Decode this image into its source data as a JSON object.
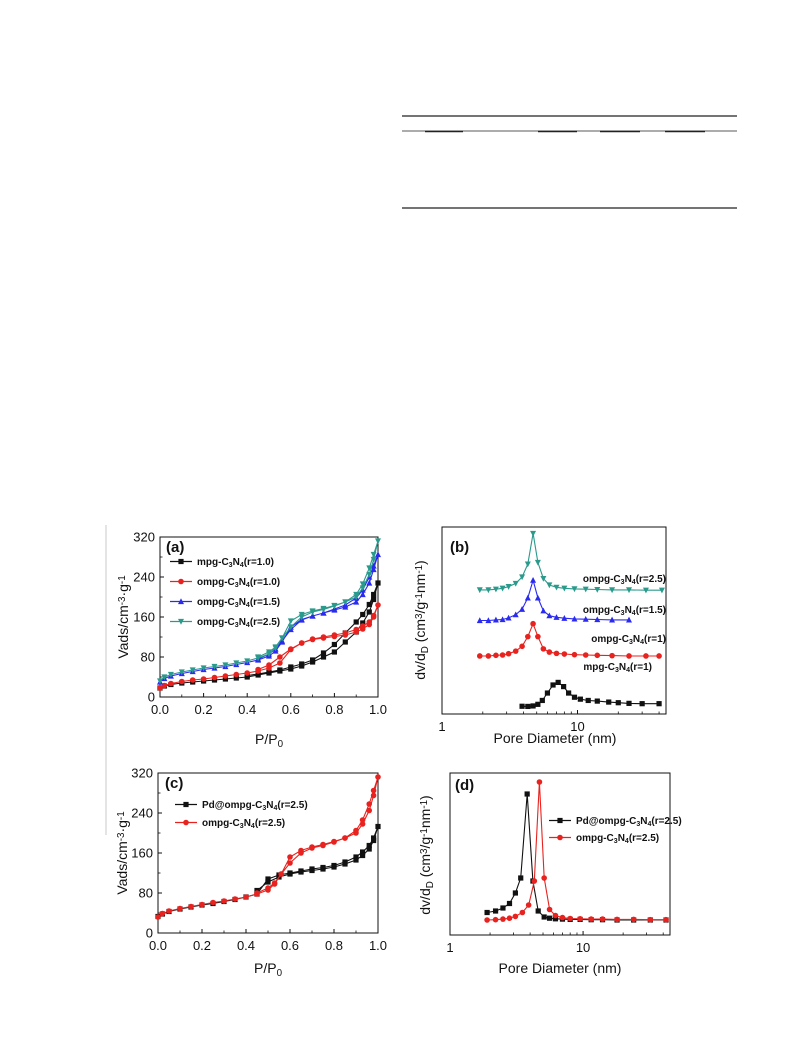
{
  "colors": {
    "black": "#111111",
    "red": "#e8221e",
    "blue": "#2a2af0",
    "teal": "#2a9a8c"
  },
  "chart_data": [
    {
      "id": "a",
      "type": "line",
      "panel_label": "(a)",
      "xlabel_parts": [
        "P/P",
        "0"
      ],
      "ylabel_parts": [
        "Vads/cm",
        "-3",
        "·g",
        "-1"
      ],
      "xlim": [
        0,
        1.0
      ],
      "ylim": [
        0,
        320
      ],
      "xticks": [
        0.0,
        0.2,
        0.4,
        0.6,
        0.8,
        1.0
      ],
      "xtick_labels": [
        "0.0",
        "0.2",
        "0.4",
        "0.6",
        "0.8",
        "1.0"
      ],
      "yticks": [
        0,
        80,
        160,
        240,
        320
      ],
      "ytick_labels": [
        "0",
        "80",
        "160",
        "240",
        "320"
      ],
      "legend_position": "top-left",
      "series": [
        {
          "name": "mpg-C3N4(r=1.0)",
          "legend": [
            "mpg-C",
            "3",
            "N",
            "4",
            "(r=1.0)"
          ],
          "color": "black",
          "marker": "square",
          "x": [
            0.0,
            0.02,
            0.05,
            0.1,
            0.15,
            0.2,
            0.25,
            0.3,
            0.35,
            0.4,
            0.45,
            0.5,
            0.55,
            0.6,
            0.65,
            0.7,
            0.75,
            0.8,
            0.85,
            0.9,
            0.93,
            0.96,
            0.98,
            1.0,
            0.98,
            0.96,
            0.93,
            0.9,
            0.85,
            0.8,
            0.75,
            0.7,
            0.65,
            0.6,
            0.55,
            0.5,
            0.45,
            0.4
          ],
          "y": [
            18,
            22,
            25,
            28,
            30,
            32,
            34,
            36,
            38,
            40,
            44,
            48,
            52,
            56,
            62,
            70,
            80,
            90,
            110,
            130,
            148,
            170,
            195,
            228,
            205,
            185,
            165,
            150,
            128,
            105,
            88,
            74,
            66,
            60,
            54,
            50,
            46,
            43
          ]
        },
        {
          "name": "ompg-C3N4(r=1.0)",
          "legend": [
            "ompg-C",
            "3",
            "N",
            "4",
            "(r=1.0)"
          ],
          "color": "red",
          "marker": "circle",
          "x": [
            0.0,
            0.02,
            0.05,
            0.1,
            0.15,
            0.2,
            0.25,
            0.3,
            0.35,
            0.4,
            0.45,
            0.5,
            0.55,
            0.6,
            0.65,
            0.7,
            0.75,
            0.8,
            0.85,
            0.9,
            0.93,
            0.96,
            0.98,
            1.0,
            0.98,
            0.96,
            0.93,
            0.9,
            0.85,
            0.8,
            0.75,
            0.7,
            0.65,
            0.6,
            0.55,
            0.5,
            0.45
          ],
          "y": [
            18,
            23,
            27,
            31,
            34,
            36,
            39,
            42,
            45,
            48,
            52,
            58,
            68,
            95,
            108,
            115,
            118,
            121,
            124,
            130,
            136,
            145,
            160,
            184,
            163,
            150,
            142,
            135,
            128,
            124,
            120,
            116,
            108,
            96,
            80,
            64,
            55
          ]
        },
        {
          "name": "ompg-C3N4(r=1.5)",
          "legend": [
            "ompg-C",
            "3",
            "N",
            "4",
            "(r=1.5)"
          ],
          "color": "blue",
          "marker": "triangle",
          "x": [
            0.0,
            0.02,
            0.05,
            0.1,
            0.15,
            0.2,
            0.25,
            0.3,
            0.35,
            0.4,
            0.45,
            0.5,
            0.53,
            0.56,
            0.6,
            0.65,
            0.7,
            0.75,
            0.8,
            0.85,
            0.9,
            0.93,
            0.96,
            0.98,
            1.0,
            0.98,
            0.96,
            0.93,
            0.9,
            0.85,
            0.8,
            0.75,
            0.7,
            0.65,
            0.6,
            0.56,
            0.53,
            0.5,
            0.45
          ],
          "y": [
            30,
            37,
            42,
            47,
            51,
            55,
            58,
            61,
            65,
            69,
            74,
            82,
            92,
            110,
            140,
            155,
            162,
            168,
            174,
            180,
            190,
            205,
            228,
            255,
            285,
            262,
            240,
            214,
            198,
            184,
            176,
            168,
            162,
            154,
            135,
            112,
            96,
            86,
            76
          ]
        },
        {
          "name": "ompg-C3N4(r=2.5)",
          "legend": [
            "ompg-C",
            "3",
            "N",
            "4",
            "(r=2.5)"
          ],
          "color": "teal",
          "marker": "triangle-down",
          "x": [
            0.0,
            0.02,
            0.05,
            0.1,
            0.15,
            0.2,
            0.25,
            0.3,
            0.35,
            0.4,
            0.45,
            0.5,
            0.53,
            0.56,
            0.6,
            0.65,
            0.7,
            0.75,
            0.8,
            0.85,
            0.9,
            0.93,
            0.96,
            0.98,
            1.0,
            0.98,
            0.96,
            0.93,
            0.9,
            0.85,
            0.8,
            0.75,
            0.7,
            0.65,
            0.6,
            0.56,
            0.53,
            0.5,
            0.45
          ],
          "y": [
            32,
            40,
            45,
            50,
            54,
            58,
            61,
            64,
            68,
            72,
            78,
            86,
            98,
            118,
            152,
            165,
            172,
            177,
            183,
            190,
            200,
            218,
            245,
            275,
            312,
            285,
            258,
            226,
            205,
            190,
            182,
            175,
            170,
            160,
            140,
            118,
            100,
            90,
            80
          ]
        }
      ]
    },
    {
      "id": "b",
      "type": "line",
      "panel_label": "(b)",
      "xlabel_parts": [
        "Pore Diameter (nm)"
      ],
      "ylabel_parts": [
        "dv/d",
        "D",
        " (cm",
        "3",
        "/g",
        "-1",
        "nm",
        "-1",
        ")"
      ],
      "xscale": "log",
      "xlim": [
        1,
        45
      ],
      "xticks": [
        1,
        10
      ],
      "xtick_labels": [
        "1",
        "10"
      ],
      "yticks_shown": false,
      "series": [
        {
          "name": "mpg-C3N4(r=1)",
          "legend": [
            "mpg-C",
            "3",
            "N",
            "4",
            "(r=1)"
          ],
          "color": "black",
          "marker": "square",
          "x": [
            3.9,
            4.3,
            4.7,
            5.1,
            5.5,
            6.0,
            6.6,
            7.2,
            7.9,
            8.6,
            9.5,
            10.5,
            12,
            14,
            17,
            20,
            24,
            30,
            40
          ],
          "y": [
            0.04,
            0.035,
            0.05,
            0.1,
            0.22,
            0.45,
            0.7,
            0.78,
            0.65,
            0.45,
            0.32,
            0.26,
            0.22,
            0.2,
            0.17,
            0.15,
            0.13,
            0.12,
            0.12
          ]
        },
        {
          "name": "ompg-C3N4(r=1)",
          "legend": [
            "ompg-C",
            "3",
            "N",
            "4",
            "(r=1)"
          ],
          "color": "red",
          "marker": "circle",
          "x": [
            1.9,
            2.2,
            2.5,
            2.8,
            3.1,
            3.5,
            3.9,
            4.3,
            4.7,
            5.1,
            5.6,
            6.2,
            7,
            8,
            9.5,
            11.5,
            14,
            18,
            24,
            32,
            40
          ],
          "y": [
            1.6,
            1.6,
            1.62,
            1.63,
            1.67,
            1.75,
            1.9,
            2.2,
            2.6,
            2.2,
            1.82,
            1.72,
            1.68,
            1.66,
            1.64,
            1.63,
            1.62,
            1.61,
            1.6,
            1.6,
            1.6
          ]
        },
        {
          "name": "ompg-C3N4(r=1.5)",
          "legend": [
            "ompg-C",
            "3",
            "N",
            "4",
            "(r=1.5)"
          ],
          "color": "blue",
          "marker": "triangle",
          "x": [
            1.9,
            2.2,
            2.5,
            2.8,
            3.1,
            3.5,
            3.9,
            4.3,
            4.7,
            5.1,
            5.6,
            6.2,
            7,
            8,
            9.5,
            11.5,
            14,
            18,
            24
          ],
          "y": [
            2.7,
            2.7,
            2.72,
            2.73,
            2.78,
            2.88,
            3.05,
            3.4,
            3.95,
            3.4,
            3.0,
            2.85,
            2.8,
            2.77,
            2.75,
            2.74,
            2.73,
            2.72,
            2.72
          ]
        },
        {
          "name": "ompg-C3N4(r=2.5)",
          "legend": [
            "ompg-C",
            "3",
            "N",
            "4",
            "(r=2.5)"
          ],
          "color": "teal",
          "marker": "triangle-down",
          "x": [
            1.9,
            2.2,
            2.5,
            2.8,
            3.1,
            3.5,
            3.9,
            4.3,
            4.7,
            5.1,
            5.6,
            6.2,
            7,
            8,
            9.5,
            11.5,
            14,
            18,
            24,
            32,
            42
          ],
          "y": [
            3.65,
            3.65,
            3.67,
            3.7,
            3.75,
            3.85,
            4.05,
            4.45,
            5.4,
            4.5,
            4.0,
            3.8,
            3.73,
            3.7,
            3.68,
            3.67,
            3.66,
            3.65,
            3.65,
            3.64,
            3.64
          ]
        }
      ]
    },
    {
      "id": "c",
      "type": "line",
      "panel_label": "(c)",
      "xlabel_parts": [
        "P/P",
        "0"
      ],
      "ylabel_parts": [
        "Vads/cm",
        "-3",
        "·g",
        "-1"
      ],
      "xlim": [
        0,
        1.0
      ],
      "ylim": [
        0,
        320
      ],
      "xticks": [
        0.0,
        0.2,
        0.4,
        0.6,
        0.8,
        1.0
      ],
      "xtick_labels": [
        "0.0",
        "0.2",
        "0.4",
        "0.6",
        "0.8",
        "1.0"
      ],
      "yticks": [
        0,
        80,
        160,
        240,
        320
      ],
      "ytick_labels": [
        "0",
        "80",
        "160",
        "240",
        "320"
      ],
      "series": [
        {
          "name": "Pd@ompg-C3N4(r=2.5)",
          "legend": [
            "Pd@ompg-C",
            "3",
            "N",
            "4",
            "(r=2.5)"
          ],
          "color": "black",
          "marker": "square",
          "x": [
            0.0,
            0.02,
            0.05,
            0.1,
            0.15,
            0.2,
            0.25,
            0.3,
            0.35,
            0.4,
            0.45,
            0.5,
            0.55,
            0.6,
            0.65,
            0.7,
            0.75,
            0.8,
            0.85,
            0.9,
            0.93,
            0.96,
            0.98,
            1.0,
            0.98,
            0.96,
            0.93,
            0.9,
            0.85,
            0.8,
            0.75,
            0.7,
            0.65,
            0.6,
            0.55,
            0.5,
            0.45
          ],
          "y": [
            33,
            38,
            43,
            48,
            52,
            56,
            59,
            63,
            67,
            72,
            78,
            108,
            116,
            120,
            124,
            128,
            131,
            135,
            142,
            152,
            162,
            175,
            190,
            213,
            185,
            168,
            155,
            146,
            138,
            132,
            128,
            125,
            122,
            118,
            112,
            102,
            85
          ]
        },
        {
          "name": "ompg-C3N4(r=2.5)",
          "legend": [
            "ompg-C",
            "3",
            "N",
            "4",
            "(r=2.5)"
          ],
          "color": "red",
          "marker": "circle",
          "x": [
            0.0,
            0.02,
            0.05,
            0.1,
            0.15,
            0.2,
            0.25,
            0.3,
            0.35,
            0.4,
            0.45,
            0.5,
            0.53,
            0.56,
            0.6,
            0.65,
            0.7,
            0.75,
            0.8,
            0.85,
            0.9,
            0.93,
            0.96,
            0.98,
            1.0,
            0.98,
            0.96,
            0.93,
            0.9,
            0.85,
            0.8,
            0.75,
            0.7,
            0.65,
            0.6,
            0.56,
            0.53,
            0.5,
            0.45
          ],
          "y": [
            32,
            39,
            44,
            49,
            53,
            57,
            61,
            64,
            68,
            72,
            78,
            86,
            98,
            118,
            152,
            165,
            172,
            177,
            183,
            190,
            200,
            218,
            245,
            275,
            312,
            285,
            258,
            226,
            205,
            190,
            182,
            175,
            170,
            160,
            140,
            118,
            100,
            90,
            80
          ]
        }
      ]
    },
    {
      "id": "d",
      "type": "line",
      "panel_label": "(d)",
      "xlabel_parts": [
        "Pore Diameter (nm)"
      ],
      "ylabel_parts": [
        "dv/d",
        "D",
        " (cm",
        "3",
        "/g",
        "-1",
        "nm",
        "-1",
        ")"
      ],
      "xscale": "log",
      "xlim": [
        1,
        45
      ],
      "xticks": [
        1,
        10
      ],
      "xtick_labels": [
        "1",
        "10"
      ],
      "yticks_shown": false,
      "legend_position": "top-right",
      "series": [
        {
          "name": "Pd@ompg-C3N4(r=2.5)",
          "legend": [
            "Pd@ompg-C",
            "3",
            "N",
            "4",
            "(r=2.5)"
          ],
          "color": "black",
          "marker": "square",
          "x": [
            1.9,
            2.2,
            2.5,
            2.8,
            3.1,
            3.4,
            3.8,
            4.2,
            4.6,
            5.1,
            5.6,
            6.2,
            7,
            8,
            9.5,
            11.5,
            14,
            18,
            24,
            32,
            42
          ],
          "y": [
            0.55,
            0.6,
            0.7,
            0.85,
            1.2,
            1.7,
            4.5,
            1.6,
            0.6,
            0.4,
            0.36,
            0.34,
            0.33,
            0.32,
            0.32,
            0.31,
            0.31,
            0.3,
            0.3,
            0.3,
            0.3
          ]
        },
        {
          "name": "ompg-C3N4(r=2.5)",
          "legend": [
            "ompg-C",
            "3",
            "N",
            "4",
            "(r=2.5)"
          ],
          "color": "red",
          "marker": "circle",
          "x": [
            1.9,
            2.2,
            2.5,
            2.8,
            3.1,
            3.5,
            3.9,
            4.3,
            4.7,
            5.1,
            5.6,
            6.2,
            7,
            8,
            9.5,
            11.5,
            14,
            18,
            24,
            32,
            42
          ],
          "y": [
            0.3,
            0.31,
            0.33,
            0.36,
            0.42,
            0.55,
            0.8,
            1.6,
            4.9,
            1.7,
            0.65,
            0.45,
            0.38,
            0.35,
            0.34,
            0.33,
            0.33,
            0.32,
            0.32,
            0.31,
            0.31
          ]
        }
      ]
    }
  ]
}
